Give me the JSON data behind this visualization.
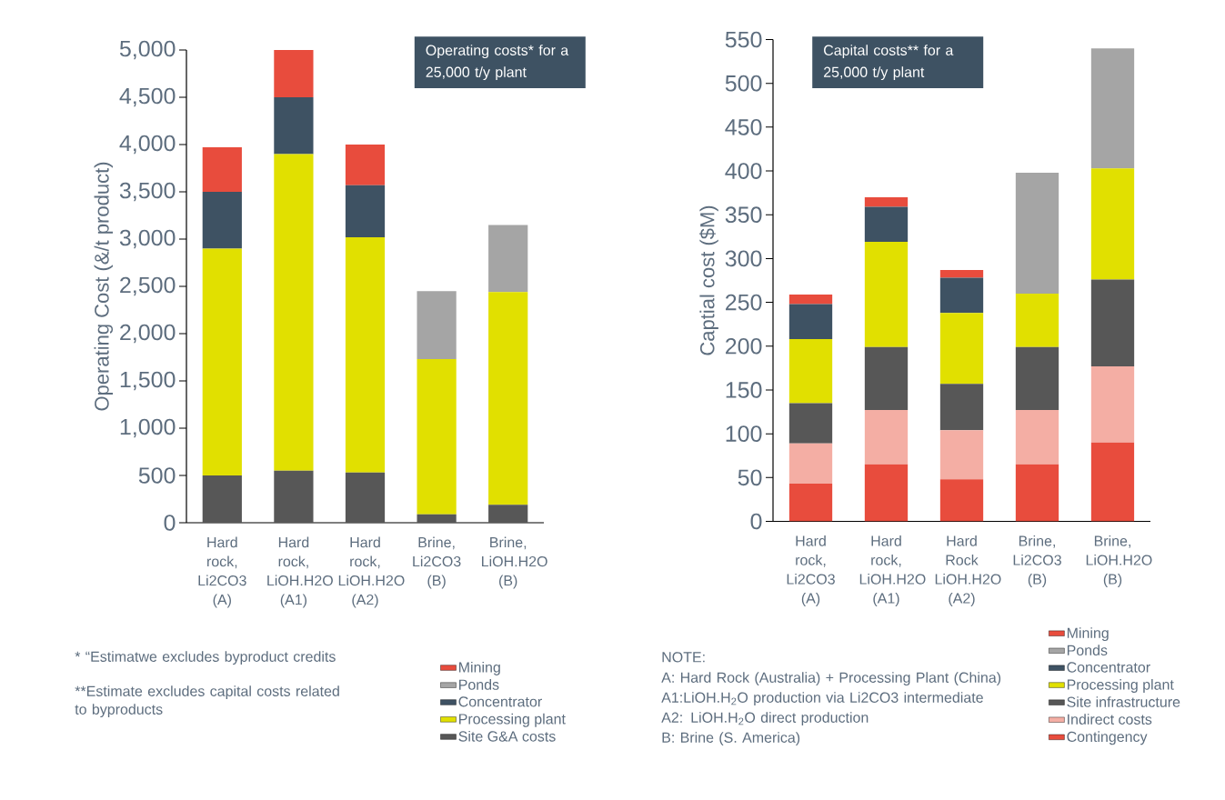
{
  "chart_data": [
    {
      "type": "bar",
      "stacked": true,
      "title": "Operating costs* for a 25,000 t/y plant",
      "ylabel": "Operating Cost (&/t product)",
      "categories": [
        "Hard rock, Li2CO3 (A)",
        "Hard rock, LiOH.H2O (A1)",
        "Hard rock, LiOH.H2O (A2)",
        "Brine, Li2CO3 (B)",
        "Brine, LiOH.H2O (B)"
      ],
      "series": [
        {
          "name": "Site G&A costs",
          "color": "#575757",
          "values": [
            500,
            550,
            530,
            90,
            190
          ]
        },
        {
          "name": "Processing plant",
          "color": "#e1e000",
          "values": [
            2400,
            3350,
            2490,
            1640,
            2250
          ]
        },
        {
          "name": "Concentrator",
          "color": "#3e5263",
          "values": [
            600,
            600,
            550,
            0,
            0
          ]
        },
        {
          "name": "Ponds",
          "color": "#a5a5a5",
          "values": [
            0,
            0,
            0,
            720,
            710
          ]
        },
        {
          "name": "Mining",
          "color": "#e84c3d",
          "values": [
            470,
            500,
            430,
            0,
            0
          ]
        }
      ],
      "ylim": [
        0,
        5000
      ],
      "yticks": [
        0,
        500,
        {
          "value": 1000,
          "label": "1,000"
        },
        {
          "value": 1500,
          "label": "1,500"
        },
        {
          "value": 2000,
          "label": "2,000"
        },
        {
          "value": 2500,
          "label": "2,500"
        },
        {
          "value": 3000,
          "label": "3,000"
        },
        {
          "value": 3500,
          "label": "3,500"
        },
        {
          "value": 4000,
          "label": "4,000"
        },
        {
          "value": 4500,
          "label": "4,500"
        },
        {
          "value": 5000,
          "label": "5,000"
        }
      ],
      "legend": "bottom right",
      "annotations": [
        "* “Estimatwe excludes byproduct credits",
        "**Estimate excludes capital costs related to byproducts"
      ]
    },
    {
      "type": "bar",
      "stacked": true,
      "title": "Capital costs** for a 25,000 t/y plant",
      "ylabel": "Captial cost ($M)",
      "categories": [
        "Hard rock, Li2CO3 (A)",
        "Hard rock, LiOH.H2O (A1)",
        "Hard Rock LiOH.H2O (A2)",
        "Brine, Li2CO3 (B)",
        "Brine, LiOH.H2O (B)"
      ],
      "series": [
        {
          "name": "Contingency",
          "color": "#e84c3d",
          "values": [
            43,
            65,
            48,
            65,
            90
          ]
        },
        {
          "name": "Indirect costs",
          "color": "#f4aea4",
          "values": [
            46,
            62,
            56,
            62,
            87
          ]
        },
        {
          "name": "Site infrastructure",
          "color": "#575757",
          "values": [
            46,
            72,
            53,
            72,
            99
          ]
        },
        {
          "name": "Processing plant",
          "color": "#e1e000",
          "values": [
            73,
            120,
            81,
            61,
            127
          ]
        },
        {
          "name": "Concentrator",
          "color": "#3e5263",
          "values": [
            40,
            40,
            40,
            0,
            0
          ]
        },
        {
          "name": "Ponds",
          "color": "#a5a5a5",
          "values": [
            0,
            0,
            0,
            138,
            137
          ]
        },
        {
          "name": "Mining",
          "color": "#e84c3d",
          "values": [
            11,
            11,
            9,
            0,
            0
          ]
        }
      ],
      "ylim": [
        0,
        550
      ],
      "yticks": [
        0,
        50,
        100,
        150,
        200,
        250,
        300,
        350,
        400,
        450,
        500,
        550
      ],
      "legend": "bottom right",
      "annotations": [
        "NOTE:",
        "A: Hard Rock (Australia) + Processing Plant (China)",
        "A1:LiOH.H$_{2}$O production via Li2CO3 intermediate",
        "A2: LiOH.H$_{2}$O direct production",
        "B: Brine (S. America)"
      ]
    }
  ]
}
